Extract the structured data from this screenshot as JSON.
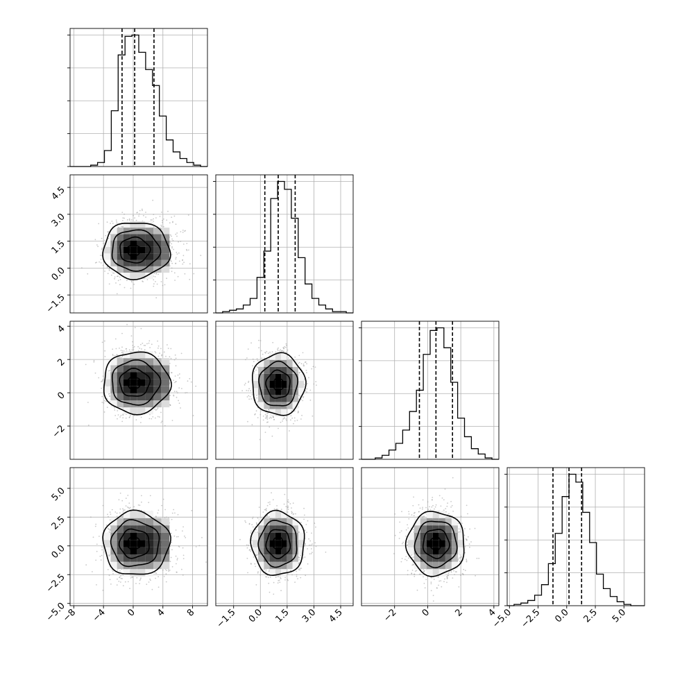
{
  "figure": {
    "type": "corner-plot",
    "n_params": 4,
    "colors": {
      "background": "#ffffff",
      "axis": "#000000",
      "grid": "#b0b0b0",
      "scatter": "#9a9a9a",
      "contour": "#000000"
    },
    "grid": true
  },
  "chart_data": [
    {
      "type": "histogram",
      "panel": "hist-0",
      "xlim": [
        -8.5,
        10
      ],
      "quantiles": [
        -1.5,
        0.2,
        2.8
      ],
      "bin_edges": [
        -8.5,
        -7.575,
        -6.65,
        -5.725,
        -4.8,
        -3.875,
        -2.95,
        -2.025,
        -1.1,
        -0.175,
        0.75,
        1.675,
        2.6,
        3.525,
        4.45,
        5.375,
        6.3,
        7.225,
        8.15,
        9.075,
        10.0
      ],
      "counts": [
        0,
        0,
        0,
        1,
        3,
        12,
        42,
        84,
        98,
        99,
        86,
        73,
        61,
        38,
        20,
        11,
        6,
        3,
        1,
        0
      ]
    },
    {
      "type": "histogram",
      "panel": "hist-1",
      "xlim": [
        -2.5,
        5.2
      ],
      "quantiles": [
        0.25,
        1.0,
        1.95
      ],
      "bin_edges": [
        -2.5,
        -2.115,
        -1.73,
        -1.345,
        -0.96,
        -0.575,
        -0.19,
        0.195,
        0.58,
        0.965,
        1.35,
        1.735,
        2.12,
        2.505,
        2.89,
        3.275,
        3.66,
        4.045,
        4.43,
        4.815,
        5.2
      ],
      "counts": [
        0,
        1,
        2,
        3,
        6,
        11,
        27,
        47,
        87,
        100,
        94,
        72,
        42,
        22,
        11,
        6,
        3,
        1,
        1,
        0
      ]
    },
    {
      "type": "histogram",
      "panel": "hist-2",
      "xlim": [
        -4,
        4.3
      ],
      "quantiles": [
        -0.5,
        0.5,
        1.5
      ],
      "bin_edges": [
        -4,
        -3.585,
        -3.17,
        -2.755,
        -2.34,
        -1.925,
        -1.51,
        -1.095,
        -0.68,
        -0.265,
        0.15,
        0.565,
        0.98,
        1.395,
        1.81,
        2.225,
        2.64,
        3.055,
        3.47,
        3.885,
        4.3
      ],
      "counts": [
        0,
        0,
        1,
        3,
        7,
        12,
        22,
        36,
        52,
        79,
        97,
        99,
        84,
        58,
        31,
        17,
        8,
        4,
        1,
        0
      ]
    },
    {
      "type": "histogram",
      "panel": "hist-3",
      "xlim": [
        -5.2,
        6.8
      ],
      "quantiles": [
        -1.2,
        0.2,
        1.3
      ],
      "bin_edges": [
        -5.2,
        -4.6,
        -4.0,
        -3.4,
        -2.8,
        -2.2,
        -1.6,
        -1.0,
        -0.4,
        0.2,
        0.8,
        1.4,
        2.0,
        2.6,
        3.2,
        3.8,
        4.4,
        5.0,
        5.6,
        6.2,
        6.8
      ],
      "counts": [
        0,
        1,
        2,
        4,
        8,
        16,
        32,
        55,
        83,
        100,
        94,
        71,
        48,
        24,
        13,
        7,
        3,
        1,
        0,
        0
      ]
    },
    {
      "type": "scatter-density",
      "panel": "pair-1-0",
      "x_param": 0,
      "y_param": 1,
      "xlim": [
        -8.5,
        10
      ],
      "ylim": [
        -2.5,
        5.2
      ],
      "center": [
        0.0,
        1.0
      ],
      "spread": [
        2.3,
        0.85
      ],
      "skew": 0.25
    },
    {
      "type": "scatter-density",
      "panel": "pair-2-0",
      "x_param": 0,
      "y_param": 2,
      "xlim": [
        -8.5,
        10
      ],
      "ylim": [
        -4,
        4.3
      ],
      "center": [
        0.0,
        0.6
      ],
      "spread": [
        2.3,
        1.0
      ],
      "skew": 0.25
    },
    {
      "type": "scatter-density",
      "panel": "pair-2-1",
      "x_param": 1,
      "y_param": 2,
      "xlim": [
        -2.5,
        5.2
      ],
      "ylim": [
        -4,
        4.3
      ],
      "center": [
        1.0,
        0.5
      ],
      "spread": [
        0.85,
        1.0
      ],
      "skew": 0
    },
    {
      "type": "scatter-density",
      "panel": "pair-3-0",
      "x_param": 0,
      "y_param": 3,
      "xlim": [
        -8.5,
        10
      ],
      "ylim": [
        -5.2,
        6.8
      ],
      "center": [
        0.0,
        0.2
      ],
      "spread": [
        2.3,
        1.5
      ],
      "skew": 0.25
    },
    {
      "type": "scatter-density",
      "panel": "pair-3-1",
      "x_param": 1,
      "y_param": 3,
      "xlim": [
        -2.5,
        5.2
      ],
      "ylim": [
        -5.2,
        6.8
      ],
      "center": [
        1.0,
        0.2
      ],
      "spread": [
        0.85,
        1.5
      ],
      "skew": 0
    },
    {
      "type": "scatter-density",
      "panel": "pair-3-2",
      "x_param": 2,
      "y_param": 3,
      "xlim": [
        -4,
        4.3
      ],
      "ylim": [
        -5.2,
        6.8
      ],
      "center": [
        0.5,
        0.2
      ],
      "spread": [
        1.0,
        1.5
      ],
      "skew": 0
    }
  ],
  "axes": {
    "x_ticks": [
      {
        "values": [
          -8,
          -4,
          0,
          4,
          8
        ],
        "labels": [
          "−8",
          "−4",
          "0",
          "4",
          "8"
        ]
      },
      {
        "values": [
          -1.5,
          0,
          1.5,
          3,
          4.5
        ],
        "labels": [
          "−1.5",
          "0.0",
          "1.5",
          "3.0",
          "4.5"
        ]
      },
      {
        "values": [
          -2,
          0,
          2,
          4
        ],
        "labels": [
          "−2",
          "0",
          "2",
          "4"
        ]
      },
      {
        "values": [
          -5,
          -2.5,
          0,
          2.5,
          5
        ],
        "labels": [
          "−5.0",
          "−2.5",
          "0.0",
          "2.5",
          "5.0"
        ]
      }
    ],
    "y_ticks": [
      null,
      {
        "values": [
          -1.5,
          0,
          1.5,
          3,
          4.5
        ],
        "labels": [
          "−1.5",
          "0.0",
          "1.5",
          "3.0",
          "4.5"
        ]
      },
      {
        "values": [
          -2,
          0,
          2,
          4
        ],
        "labels": [
          "−2",
          "0",
          "2",
          "4"
        ]
      },
      {
        "values": [
          -5,
          -2.5,
          0,
          2.5,
          5
        ],
        "labels": [
          "−5.0",
          "−2.5",
          "0.0",
          "2.5",
          "5.0"
        ]
      }
    ]
  }
}
